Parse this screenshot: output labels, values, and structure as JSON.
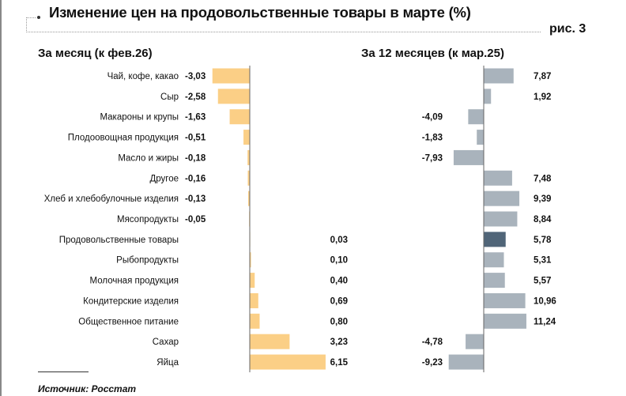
{
  "title": "Изменение цен на продовольственные товары в марте (%)",
  "figure_label": "рис. 3",
  "source": "Источник: Росстат",
  "chart_data": [
    {
      "type": "bar",
      "orientation": "horizontal",
      "title": "За месяц (к фев.26)",
      "categories": [
        "Чай, кофе, какао",
        "Сыр",
        "Макароны и крупы",
        "Плодоовощная продукция",
        "Масло и жиры",
        "Другое",
        "Хлеб и хлебобулочные изделия",
        "Мясопродукты",
        "Продовольственные товары",
        "Рыбопродукты",
        "Молочная продукция",
        "Кондитерские изделия",
        "Общественное питание",
        "Сахар",
        "Яйца"
      ],
      "values": [
        -3.03,
        -2.58,
        -1.63,
        -0.51,
        -0.18,
        -0.16,
        -0.13,
        -0.05,
        0.03,
        0.1,
        0.4,
        0.69,
        0.8,
        3.23,
        6.15
      ],
      "value_labels": [
        "-3,03",
        "-2,58",
        "-1,63",
        "-0,51",
        "-0,18",
        "-0,16",
        "-0,13",
        "-0,05",
        "0,03",
        "0,10",
        "0,40",
        "0,69",
        "0,80",
        "3,23",
        "6,15"
      ],
      "color": "#fbcf86",
      "grid": false
    },
    {
      "type": "bar",
      "orientation": "horizontal",
      "title": "За 12 месяцев (к мар.25)",
      "values": [
        7.87,
        1.92,
        -4.09,
        -1.83,
        -7.93,
        7.48,
        9.39,
        8.84,
        5.78,
        5.31,
        5.57,
        10.96,
        11.24,
        -4.78,
        -9.23
      ],
      "value_labels": [
        "7,87",
        "1,92",
        "-4,09",
        "-1,83",
        "-7,93",
        "7,48",
        "9,39",
        "8,84",
        "5,78",
        "5,31",
        "5,57",
        "10,96",
        "11,24",
        "-4,78",
        "-9,23"
      ],
      "color": "#a9b3bc",
      "highlight_color": "#506578",
      "highlight_category": "Продовольственные товары",
      "grid": false
    }
  ]
}
